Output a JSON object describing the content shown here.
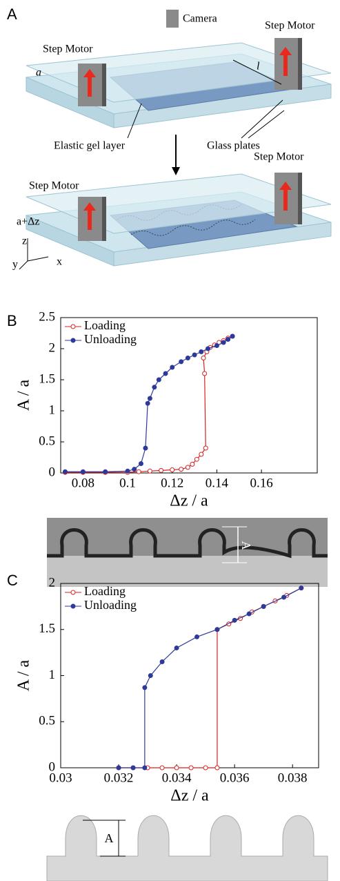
{
  "panel_labels": [
    "A",
    "B",
    "C"
  ],
  "diagram": {
    "camera": "Camera",
    "step_motor_top_right": "Step Motor",
    "step_motor_top_left": "Step Motor",
    "gap_label": "a",
    "length_label": "l",
    "gel_label": "Elastic gel layer",
    "plates_label": "Glass plates",
    "step_motor_bottom_right": "Step Motor",
    "step_motor_bottom_left": "Step Motor",
    "gap_label_2": "a+Δz",
    "axis_z": "z",
    "axis_y": "y",
    "axis_x": "x"
  },
  "insets": [
    {
      "label": "A"
    },
    {
      "label": "A"
    }
  ],
  "chart_data": [
    {
      "type": "scatter",
      "x_label": "Δz / a",
      "y_label": "A / a",
      "xlim": [
        0.07,
        0.185
      ],
      "xticks": [
        0.08,
        0.1,
        0.12,
        0.14,
        0.16
      ],
      "ylim": [
        0,
        2.5
      ],
      "yticks": [
        0,
        0.5,
        1,
        1.5,
        2,
        2.5
      ],
      "legend": "upper left",
      "series": [
        {
          "name": "Loading",
          "color": "#d62020",
          "filled": false,
          "x": [
            0.072,
            0.08,
            0.09,
            0.1,
            0.105,
            0.11,
            0.115,
            0.12,
            0.124,
            0.127,
            0.129,
            0.131,
            0.133,
            0.135,
            0.1345,
            0.134,
            0.1355,
            0.137,
            0.139,
            0.141,
            0.143,
            0.145,
            0.147
          ],
          "values": [
            0.01,
            0.01,
            0.01,
            0.01,
            0.02,
            0.03,
            0.04,
            0.05,
            0.06,
            0.09,
            0.14,
            0.22,
            0.3,
            0.4,
            1.6,
            1.85,
            1.95,
            2.02,
            2.06,
            2.1,
            2.13,
            2.17,
            2.2
          ]
        },
        {
          "name": "Unloading",
          "color": "#2d3a9a",
          "filled": true,
          "x": [
            0.072,
            0.08,
            0.09,
            0.1,
            0.103,
            0.106,
            0.108,
            0.109,
            0.11,
            0.112,
            0.114,
            0.117,
            0.12,
            0.124,
            0.127,
            0.13,
            0.133,
            0.136,
            0.14,
            0.143,
            0.145,
            0.147
          ],
          "values": [
            0.02,
            0.02,
            0.02,
            0.03,
            0.06,
            0.15,
            0.4,
            1.12,
            1.2,
            1.38,
            1.5,
            1.6,
            1.7,
            1.79,
            1.85,
            1.9,
            1.95,
            2.0,
            2.05,
            2.1,
            2.15,
            2.2
          ]
        }
      ]
    },
    {
      "type": "scatter",
      "x_label": "Δz / a",
      "y_label": "A / a",
      "xlim": [
        0.03,
        0.0389
      ],
      "xticks": [
        0.03,
        0.032,
        0.034,
        0.036,
        0.038
      ],
      "ylim": [
        0,
        2
      ],
      "yticks": [
        0,
        0.5,
        1,
        1.5,
        2
      ],
      "legend": "upper left",
      "series": [
        {
          "name": "Loading",
          "color": "#d62020",
          "filled": false,
          "x": [
            0.032,
            0.0325,
            0.033,
            0.0335,
            0.034,
            0.0345,
            0.035,
            0.0354,
            0.0354,
            0.0358,
            0.0362,
            0.0366,
            0.037,
            0.0374,
            0.0378,
            0.0383
          ],
          "values": [
            0,
            0,
            0,
            0,
            0,
            0,
            0,
            0,
            1.5,
            1.56,
            1.62,
            1.69,
            1.75,
            1.81,
            1.87,
            1.95
          ]
        },
        {
          "name": "Unloading",
          "color": "#2d3a9a",
          "filled": true,
          "x": [
            0.032,
            0.0325,
            0.0329,
            0.0329,
            0.0331,
            0.0335,
            0.034,
            0.0347,
            0.0354,
            0.036,
            0.0365,
            0.037,
            0.0377,
            0.0383
          ],
          "values": [
            0,
            0,
            0,
            0.87,
            1.0,
            1.15,
            1.3,
            1.42,
            1.5,
            1.6,
            1.67,
            1.75,
            1.85,
            1.95
          ]
        }
      ]
    }
  ]
}
